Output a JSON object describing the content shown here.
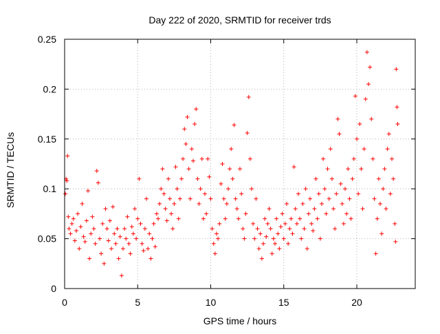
{
  "chart_data": {
    "type": "scatter",
    "title": "Day 222 of 2020, SRMTID for receiver trds",
    "xlabel": "GPS time / hours",
    "ylabel": "SRMTID / TECUs",
    "xlim": [
      0,
      24
    ],
    "ylim": [
      0,
      0.25
    ],
    "x_ticks": [
      0,
      5,
      10,
      15,
      20
    ],
    "x_tick_labels": [
      "0",
      "5",
      "10",
      "15",
      "20"
    ],
    "y_ticks": [
      0,
      0.05,
      0.1,
      0.15,
      0.2,
      0.25
    ],
    "y_tick_labels": [
      "0",
      "0.05",
      "0.1",
      "0.15",
      "0.2",
      "0.25"
    ],
    "grid": true,
    "marker": "+",
    "series": [
      {
        "name": "SRMTID",
        "color": "#ff0000",
        "points": [
          [
            0.05,
            0.095
          ],
          [
            0.1,
            0.11
          ],
          [
            0.15,
            0.108
          ],
          [
            0.2,
            0.133
          ],
          [
            0.25,
            0.072
          ],
          [
            0.3,
            0.06
          ],
          [
            0.4,
            0.055
          ],
          [
            0.5,
            0.065
          ],
          [
            0.6,
            0.07
          ],
          [
            0.7,
            0.048
          ],
          [
            0.8,
            0.058
          ],
          [
            0.9,
            0.075
          ],
          [
            1.0,
            0.04
          ],
          [
            1.1,
            0.062
          ],
          [
            1.2,
            0.085
          ],
          [
            1.3,
            0.052
          ],
          [
            1.4,
            0.047
          ],
          [
            1.5,
            0.068
          ],
          [
            1.6,
            0.098
          ],
          [
            1.7,
            0.03
          ],
          [
            1.8,
            0.055
          ],
          [
            1.9,
            0.072
          ],
          [
            2.0,
            0.06
          ],
          [
            2.1,
            0.045
          ],
          [
            2.2,
            0.118
          ],
          [
            2.3,
            0.106
          ],
          [
            2.4,
            0.05
          ],
          [
            2.5,
            0.035
          ],
          [
            2.6,
            0.065
          ],
          [
            2.7,
            0.025
          ],
          [
            2.8,
            0.08
          ],
          [
            2.9,
            0.06
          ],
          [
            3.0,
            0.048
          ],
          [
            3.1,
            0.068
          ],
          [
            3.2,
            0.04
          ],
          [
            3.3,
            0.082
          ],
          [
            3.4,
            0.055
          ],
          [
            3.5,
            0.045
          ],
          [
            3.6,
            0.06
          ],
          [
            3.7,
            0.03
          ],
          [
            3.8,
            0.052
          ],
          [
            3.9,
            0.013
          ],
          [
            4.0,
            0.04
          ],
          [
            4.1,
            0.06
          ],
          [
            4.2,
            0.05
          ],
          [
            4.3,
            0.072
          ],
          [
            4.4,
            0.045
          ],
          [
            4.5,
            0.035
          ],
          [
            4.6,
            0.062
          ],
          [
            4.7,
            0.055
          ],
          [
            4.8,
            0.08
          ],
          [
            4.9,
            0.05
          ],
          [
            5.0,
            0.07
          ],
          [
            5.1,
            0.11
          ],
          [
            5.2,
            0.065
          ],
          [
            5.3,
            0.045
          ],
          [
            5.4,
            0.038
          ],
          [
            5.5,
            0.06
          ],
          [
            5.6,
            0.09
          ],
          [
            5.7,
            0.04
          ],
          [
            5.8,
            0.055
          ],
          [
            5.9,
            0.03
          ],
          [
            6.0,
            0.05
          ],
          [
            6.1,
            0.065
          ],
          [
            6.2,
            0.042
          ],
          [
            6.3,
            0.075
          ],
          [
            6.4,
            0.07
          ],
          [
            6.5,
            0.085
          ],
          [
            6.6,
            0.1
          ],
          [
            6.7,
            0.12
          ],
          [
            6.8,
            0.095
          ],
          [
            6.9,
            0.08
          ],
          [
            7.0,
            0.068
          ],
          [
            7.1,
            0.11
          ],
          [
            7.2,
            0.09
          ],
          [
            7.3,
            0.075
          ],
          [
            7.4,
            0.06
          ],
          [
            7.5,
            0.085
          ],
          [
            7.6,
            0.122
          ],
          [
            7.7,
            0.1
          ],
          [
            7.8,
            0.07
          ],
          [
            7.9,
            0.09
          ],
          [
            8.0,
            0.11
          ],
          [
            8.1,
            0.13
          ],
          [
            8.2,
            0.16
          ],
          [
            8.3,
            0.145
          ],
          [
            8.4,
            0.172
          ],
          [
            8.5,
            0.12
          ],
          [
            8.6,
            0.09
          ],
          [
            8.7,
            0.14
          ],
          [
            8.8,
            0.128
          ],
          [
            8.9,
            0.165
          ],
          [
            9.0,
            0.18
          ],
          [
            9.1,
            0.11
          ],
          [
            9.2,
            0.085
          ],
          [
            9.3,
            0.1
          ],
          [
            9.4,
            0.13
          ],
          [
            9.5,
            0.07
          ],
          [
            9.6,
            0.095
          ],
          [
            9.7,
            0.075
          ],
          [
            9.8,
            0.13
          ],
          [
            9.9,
            0.112
          ],
          [
            10.0,
            0.09
          ],
          [
            10.1,
            0.06
          ],
          [
            10.2,
            0.045
          ],
          [
            10.3,
            0.035
          ],
          [
            10.4,
            0.055
          ],
          [
            10.5,
            0.05
          ],
          [
            10.6,
            0.065
          ],
          [
            10.7,
            0.105
          ],
          [
            10.8,
            0.125
          ],
          [
            10.9,
            0.09
          ],
          [
            11.0,
            0.07
          ],
          [
            11.1,
            0.085
          ],
          [
            11.2,
            0.1
          ],
          [
            11.3,
            0.12
          ],
          [
            11.4,
            0.14
          ],
          [
            11.5,
            0.11
          ],
          [
            11.6,
            0.164
          ],
          [
            11.7,
            0.09
          ],
          [
            11.8,
            0.08
          ],
          [
            11.9,
            0.07
          ],
          [
            12.0,
            0.12
          ],
          [
            12.1,
            0.095
          ],
          [
            12.2,
            0.06
          ],
          [
            12.3,
            0.05
          ],
          [
            12.4,
            0.075
          ],
          [
            12.5,
            0.156
          ],
          [
            12.6,
            0.192
          ],
          [
            12.7,
            0.13
          ],
          [
            12.8,
            0.1
          ],
          [
            12.9,
            0.065
          ],
          [
            13.0,
            0.05
          ],
          [
            13.1,
            0.09
          ],
          [
            13.2,
            0.06
          ],
          [
            13.3,
            0.04
          ],
          [
            13.4,
            0.055
          ],
          [
            13.5,
            0.03
          ],
          [
            13.6,
            0.045
          ],
          [
            13.7,
            0.07
          ],
          [
            13.8,
            0.052
          ],
          [
            13.9,
            0.065
          ],
          [
            14.0,
            0.08
          ],
          [
            14.1,
            0.06
          ],
          [
            14.2,
            0.035
          ],
          [
            14.3,
            0.05
          ],
          [
            14.4,
            0.045
          ],
          [
            14.5,
            0.07
          ],
          [
            14.6,
            0.055
          ],
          [
            14.7,
            0.04
          ],
          [
            14.8,
            0.062
          ],
          [
            14.9,
            0.075
          ],
          [
            15.0,
            0.05
          ],
          [
            15.1,
            0.065
          ],
          [
            15.2,
            0.085
          ],
          [
            15.3,
            0.045
          ],
          [
            15.4,
            0.06
          ],
          [
            15.5,
            0.07
          ],
          [
            15.6,
            0.055
          ],
          [
            15.7,
            0.122
          ],
          [
            15.8,
            0.08
          ],
          [
            15.9,
            0.065
          ],
          [
            16.0,
            0.095
          ],
          [
            16.1,
            0.07
          ],
          [
            16.2,
            0.05
          ],
          [
            16.3,
            0.085
          ],
          [
            16.4,
            0.06
          ],
          [
            16.5,
            0.1
          ],
          [
            16.6,
            0.04
          ],
          [
            16.7,
            0.075
          ],
          [
            16.8,
            0.09
          ],
          [
            16.9,
            0.065
          ],
          [
            17.0,
            0.058
          ],
          [
            17.1,
            0.08
          ],
          [
            17.2,
            0.11
          ],
          [
            17.3,
            0.07
          ],
          [
            17.4,
            0.095
          ],
          [
            17.5,
            0.05
          ],
          [
            17.6,
            0.085
          ],
          [
            17.7,
            0.13
          ],
          [
            17.8,
            0.1
          ],
          [
            17.9,
            0.075
          ],
          [
            18.0,
            0.12
          ],
          [
            18.1,
            0.09
          ],
          [
            18.2,
            0.14
          ],
          [
            18.3,
            0.11
          ],
          [
            18.4,
            0.08
          ],
          [
            18.5,
            0.06
          ],
          [
            18.6,
            0.095
          ],
          [
            18.7,
            0.17
          ],
          [
            18.8,
            0.155
          ],
          [
            18.9,
            0.105
          ],
          [
            19.0,
            0.085
          ],
          [
            19.1,
            0.065
          ],
          [
            19.2,
            0.1
          ],
          [
            19.3,
            0.075
          ],
          [
            19.4,
            0.12
          ],
          [
            19.5,
            0.09
          ],
          [
            19.6,
            0.07
          ],
          [
            19.7,
            0.11
          ],
          [
            19.8,
            0.13
          ],
          [
            19.9,
            0.193
          ],
          [
            20.0,
            0.15
          ],
          [
            20.1,
            0.095
          ],
          [
            20.2,
            0.165
          ],
          [
            20.3,
            0.12
          ],
          [
            20.4,
            0.08
          ],
          [
            20.5,
            0.14
          ],
          [
            20.6,
            0.19
          ],
          [
            20.7,
            0.237
          ],
          [
            20.8,
            0.205
          ],
          [
            20.9,
            0.222
          ],
          [
            21.0,
            0.17
          ],
          [
            21.1,
            0.13
          ],
          [
            21.2,
            0.09
          ],
          [
            21.3,
            0.035
          ],
          [
            21.4,
            0.07
          ],
          [
            21.5,
            0.11
          ],
          [
            21.6,
            0.085
          ],
          [
            21.7,
            0.055
          ],
          [
            21.8,
            0.1
          ],
          [
            21.9,
            0.12
          ],
          [
            22.0,
            0.08
          ],
          [
            22.1,
            0.14
          ],
          [
            22.2,
            0.155
          ],
          [
            22.3,
            0.095
          ],
          [
            22.4,
            0.13
          ],
          [
            22.5,
            0.11
          ],
          [
            22.6,
            0.065
          ],
          [
            22.65,
            0.047
          ],
          [
            22.7,
            0.22
          ],
          [
            22.75,
            0.182
          ],
          [
            22.8,
            0.165
          ]
        ]
      }
    ]
  }
}
